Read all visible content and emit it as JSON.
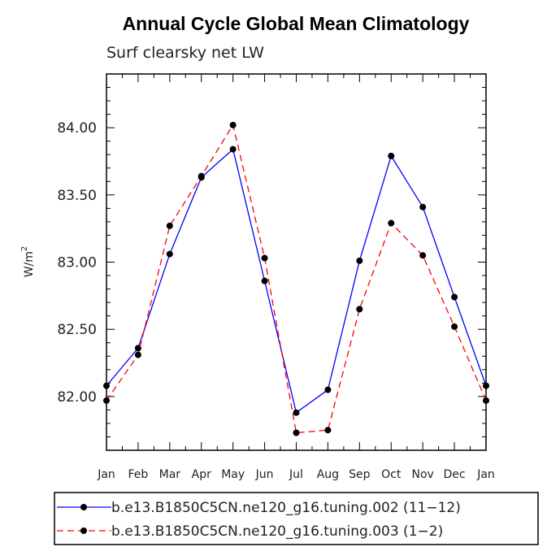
{
  "chart_data": {
    "type": "line",
    "title": "Annual Cycle Global Mean Climatology",
    "subtitle": "Surf clearsky net LW",
    "xlabel": "",
    "ylabel": "W/m",
    "ylabel_superscript": "2",
    "ylim": [
      81.6,
      84.4
    ],
    "yticks": [
      82.0,
      82.5,
      83.0,
      83.5,
      84.0
    ],
    "ytick_labels": [
      "82.00",
      "82.50",
      "83.00",
      "83.50",
      "84.00"
    ],
    "categories": [
      "Jan",
      "Feb",
      "Mar",
      "Apr",
      "May",
      "Jun",
      "Jul",
      "Aug",
      "Sep",
      "Oct",
      "Nov",
      "Dec",
      "Jan"
    ],
    "series": [
      {
        "name": "b.e13.B1850C5CN.ne120_g16.tuning.002 (11-12)",
        "legend_label": "b.e13.B1850C5CN.ne120_g16.tuning.002 (11−12)",
        "color": "#0000ff",
        "dash": "solid",
        "values": [
          82.08,
          82.36,
          83.06,
          83.63,
          83.84,
          82.86,
          81.88,
          82.05,
          83.01,
          83.79,
          83.41,
          82.74,
          82.08
        ]
      },
      {
        "name": "b.e13.B1850C5CN.ne120_g16.tuning.003 (1-2)",
        "legend_label": "b.e13.B1850C5CN.ne120_g16.tuning.003 (1−2)",
        "color": "#ff0000",
        "dash": "dashed",
        "values": [
          81.97,
          82.31,
          83.27,
          83.64,
          84.02,
          83.03,
          81.73,
          81.75,
          82.65,
          83.29,
          83.05,
          82.52,
          81.97
        ]
      }
    ],
    "legend_position": "bottom"
  }
}
